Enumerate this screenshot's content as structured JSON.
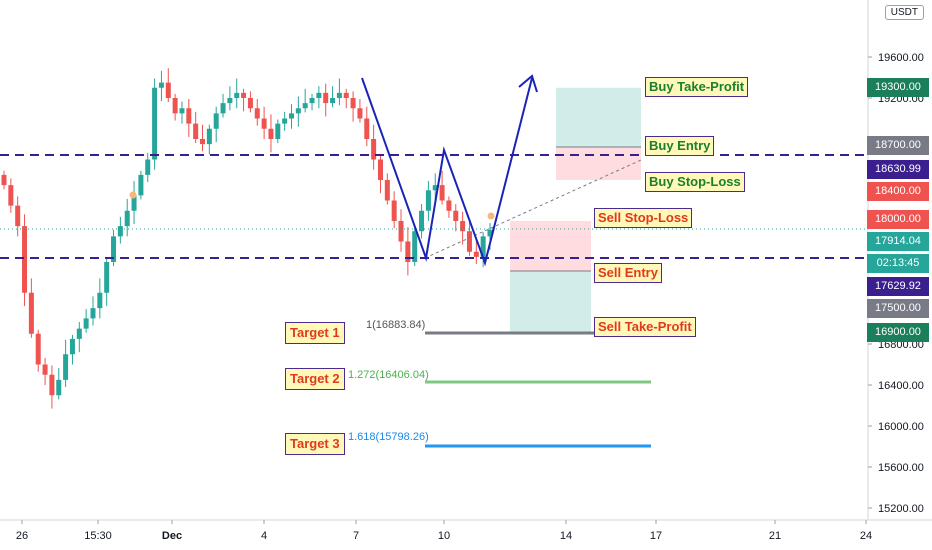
{
  "currency": "USDT",
  "chart_data": {
    "type": "candlestick",
    "y_ticks": [
      15200,
      15600,
      16000,
      16400,
      16800,
      19200,
      19600
    ],
    "y_tick_labels": [
      "15200.00",
      "15600.00",
      "16000.00",
      "16400.00",
      "16800.00",
      "19200.00",
      "19600.00"
    ],
    "x_ticks": [
      "26",
      "15:30",
      "Dec",
      "4",
      "7",
      "10",
      "14",
      "17",
      "21",
      "24"
    ],
    "price_tags": [
      {
        "name": "tag-19300",
        "label": "19300.00",
        "value": 19300,
        "color": "#1a7f5a"
      },
      {
        "name": "tag-18700",
        "label": "18700.00",
        "value": 18700,
        "color": "#787b86"
      },
      {
        "name": "tag-18630",
        "label": "18630.99",
        "value": 18630.99,
        "color": "#3b1f8f"
      },
      {
        "name": "tag-18400",
        "label": "18400.00",
        "value": 18400,
        "color": "#ef5350"
      },
      {
        "name": "tag-18000",
        "label": "18000.00",
        "value": 18000,
        "color": "#ef5350"
      },
      {
        "name": "tag-17914",
        "label": "17914.04",
        "value": 17914.04,
        "color": "#26a69a"
      },
      {
        "name": "tag-time",
        "label": "02:13:45",
        "value": 17770,
        "color": "#26a69a"
      },
      {
        "name": "tag-17629",
        "label": "17629.92",
        "value": 17629.92,
        "color": "#3b1f8f"
      },
      {
        "name": "tag-17500",
        "label": "17500.00",
        "value": 17500,
        "color": "#787b86"
      },
      {
        "name": "tag-16900",
        "label": "16900.00",
        "value": 16900,
        "color": "#1a7f5a"
      }
    ],
    "levels": {
      "upper_dashed": 18630.99,
      "lower_dashed": 17629.92
    },
    "trade_labels": [
      {
        "name": "buy-take-profit-label",
        "text": "Buy Take-Profit",
        "color": "green"
      },
      {
        "name": "buy-entry-label",
        "text": "Buy Entry",
        "color": "green"
      },
      {
        "name": "buy-stop-loss-label",
        "text": "Buy Stop-Loss",
        "color": "green"
      },
      {
        "name": "sell-stop-loss-label",
        "text": "Sell Stop-Loss",
        "color": "red"
      },
      {
        "name": "sell-entry-label",
        "text": "Sell Entry",
        "color": "red"
      },
      {
        "name": "sell-take-profit-label",
        "text": "Sell Take-Profit",
        "color": "red"
      }
    ],
    "targets": [
      {
        "name": "target-1",
        "label": "Target 1",
        "fib": "1(16883.84)",
        "value": 16883.84,
        "color": "#787b86"
      },
      {
        "name": "target-2",
        "label": "Target 2",
        "fib": "1.272(16406.04)",
        "value": 16406.04,
        "color": "#81c784"
      },
      {
        "name": "target-3",
        "label": "Target 3",
        "fib": "1.618(15798.26)",
        "value": 15798.26,
        "color": "#2196f3"
      }
    ]
  }
}
